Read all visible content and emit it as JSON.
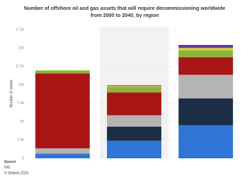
{
  "chart_data": {
    "type": "stacked-bar",
    "title": "Number of offshore oil and gas assets that will require decommissioning worldwide from 2000 to 2040, by region",
    "y_label": "Number of assets",
    "source": [
      "Source",
      "IHS",
      "© Statista 2024"
    ],
    "categories": [
      null,
      null,
      null
    ],
    "series": [
      {
        "color": "#2e75d6",
        "values": [
          650,
          2400,
          4500
        ]
      },
      {
        "color": "#1b2e45",
        "values": [
          0,
          1900,
          3650
        ]
      },
      {
        "color": "#b4b4b4",
        "values": [
          700,
          1550,
          3200
        ]
      },
      {
        "color": "#a91515",
        "values": [
          10200,
          3100,
          2400
        ]
      },
      {
        "color": "#8db53c",
        "values": [
          400,
          770,
          950
        ]
      },
      {
        "color": "#e8c93a",
        "values": [
          0,
          100,
          300
        ]
      },
      {
        "color": "#6a3fa0",
        "values": [
          0,
          100,
          300
        ]
      },
      {
        "color": "#3a3a3a",
        "values": [
          0,
          0,
          100
        ]
      }
    ],
    "ylim": [
      0,
      17500
    ],
    "yticks": [
      0,
      {
        "value": 2500,
        "label": "2.5k"
      },
      {
        "value": 5000,
        "label": "5k"
      },
      {
        "value": 7500,
        "label": "7.5k"
      },
      {
        "value": 10000,
        "label": "10k"
      },
      {
        "value": 12500,
        "label": "12.5k"
      },
      {
        "value": 15000,
        "label": "15k"
      },
      {
        "value": 17500,
        "label": "17.5k"
      }
    ],
    "grid": true
  }
}
